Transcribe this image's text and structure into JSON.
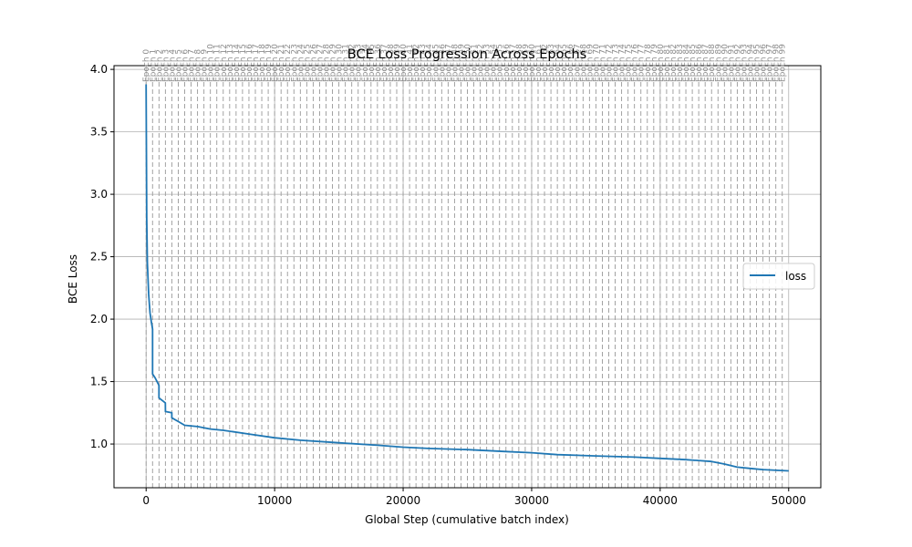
{
  "chart_data": {
    "type": "line",
    "title": "BCE Loss Progression Across Epochs",
    "xlabel": "Global Step (cumulative batch index)",
    "ylabel": "BCE Loss",
    "xlim": [
      -2500,
      52500
    ],
    "ylim": [
      0.65,
      4.03
    ],
    "xticks": [
      0,
      10000,
      20000,
      30000,
      40000,
      50000
    ],
    "xtick_labels": [
      "0",
      "10000",
      "20000",
      "30000",
      "40000",
      "50000"
    ],
    "yticks": [
      1.0,
      1.5,
      2.0,
      2.5,
      3.0,
      3.5,
      4.0
    ],
    "ytick_labels": [
      "1.0",
      "1.5",
      "2.0",
      "2.5",
      "3.0",
      "3.5",
      "4.0"
    ],
    "grid": true,
    "legend_position": "center-right",
    "epoch_markers": {
      "label_prefix": "Epoch",
      "count": 100,
      "start_step": 0,
      "step_per_epoch": 500
    },
    "series": [
      {
        "name": "loss",
        "color": "#1f77b4",
        "x": [
          0,
          50,
          100,
          200,
          300,
          400,
          499,
          500,
          700,
          999,
          1000,
          1499,
          1500,
          1999,
          2000,
          2500,
          3000,
          4000,
          5000,
          6000,
          8000,
          10000,
          12000,
          15000,
          18000,
          20000,
          22000,
          25000,
          28000,
          30000,
          32000,
          35000,
          38000,
          40000,
          42000,
          44000,
          45000,
          46000,
          47000,
          48000,
          50000
        ],
        "y": [
          3.88,
          2.8,
          2.45,
          2.2,
          2.05,
          1.98,
          1.92,
          1.56,
          1.53,
          1.47,
          1.37,
          1.33,
          1.26,
          1.25,
          1.21,
          1.18,
          1.15,
          1.14,
          1.12,
          1.11,
          1.08,
          1.05,
          1.03,
          1.01,
          0.99,
          0.975,
          0.965,
          0.955,
          0.94,
          0.93,
          0.915,
          0.905,
          0.895,
          0.885,
          0.875,
          0.86,
          0.84,
          0.815,
          0.805,
          0.795,
          0.785
        ]
      }
    ]
  }
}
